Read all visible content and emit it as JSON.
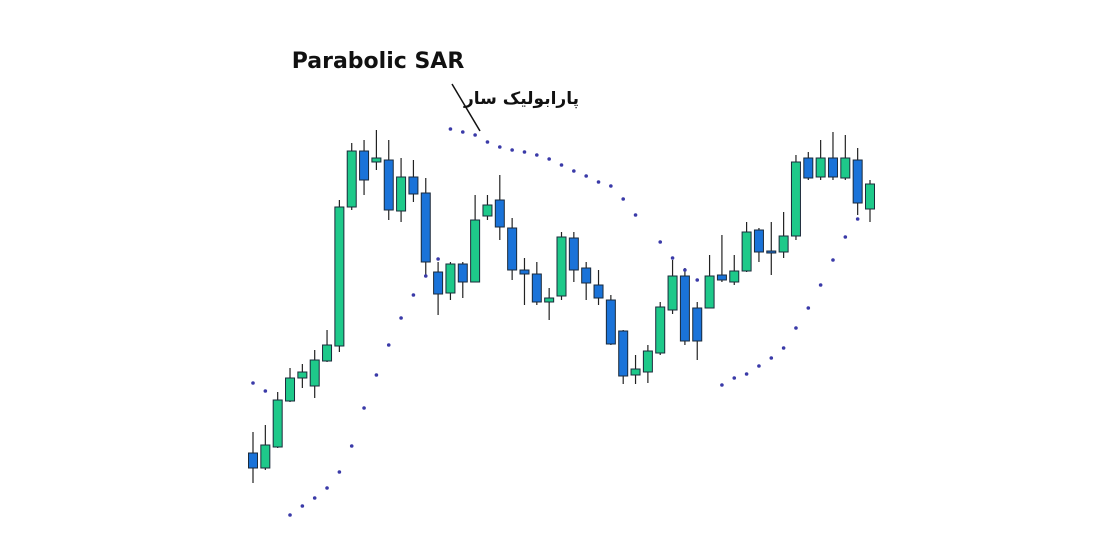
{
  "chart_data": {
    "type": "candlestick",
    "title": "Parabolic SAR",
    "subtitle": "پارابولیک سار",
    "up_color": "#1ec98a",
    "down_color": "#1a73d9",
    "sar_color": "#3a3aa8",
    "ylim": [
      40,
      460
    ],
    "open": [
      107,
      92,
      113,
      159,
      182,
      174,
      199,
      214,
      353,
      409,
      398,
      400,
      349,
      383,
      367,
      288,
      267,
      296,
      278,
      344,
      360,
      332,
      290,
      286,
      258,
      264,
      322,
      292,
      275,
      260,
      229,
      185,
      188,
      207,
      250,
      284,
      252,
      252,
      285,
      278,
      289,
      330,
      309,
      308,
      324,
      402,
      383,
      402,
      382,
      400,
      351
    ],
    "high": [
      128,
      135,
      168,
      192,
      196,
      210,
      230,
      360,
      417,
      420,
      430,
      420,
      402,
      400,
      382,
      298,
      298,
      298,
      365,
      365,
      385,
      342,
      302,
      298,
      272,
      328,
      328,
      298,
      290,
      265,
      230,
      205,
      215,
      258,
      300,
      292,
      258,
      305,
      325,
      305,
      338,
      332,
      338,
      348,
      405,
      408,
      420,
      428,
      425,
      412,
      380
    ],
    "low": [
      77,
      90,
      112,
      158,
      172,
      162,
      198,
      208,
      350,
      365,
      390,
      340,
      338,
      358,
      285,
      245,
      260,
      262,
      278,
      340,
      320,
      280,
      255,
      255,
      240,
      260,
      278,
      260,
      255,
      215,
      176,
      176,
      177,
      205,
      246,
      215,
      200,
      252,
      278,
      275,
      288,
      298,
      285,
      302,
      320,
      380,
      380,
      380,
      380,
      345,
      338
    ],
    "close": [
      92,
      115,
      160,
      182,
      188,
      200,
      215,
      353,
      409,
      380,
      402,
      350,
      383,
      366,
      298,
      266,
      296,
      278,
      340,
      355,
      333,
      290,
      286,
      258,
      262,
      323,
      290,
      277,
      262,
      216,
      184,
      191,
      209,
      253,
      284,
      219,
      219,
      284,
      280,
      289,
      328,
      308,
      307,
      324,
      398,
      382,
      402,
      383,
      402,
      357,
      376
    ],
    "sar": [
      177,
      169,
      null,
      45,
      54,
      62,
      72,
      88,
      114,
      152,
      185,
      215,
      242,
      265,
      284,
      301,
      431,
      428,
      425,
      418,
      413,
      410,
      408,
      405,
      401,
      395,
      389,
      384,
      378,
      374,
      361,
      345,
      null,
      318,
      302,
      290,
      280,
      null,
      175,
      182,
      186,
      194,
      202,
      212,
      232,
      252,
      275,
      300,
      323,
      341,
      null
    ]
  }
}
